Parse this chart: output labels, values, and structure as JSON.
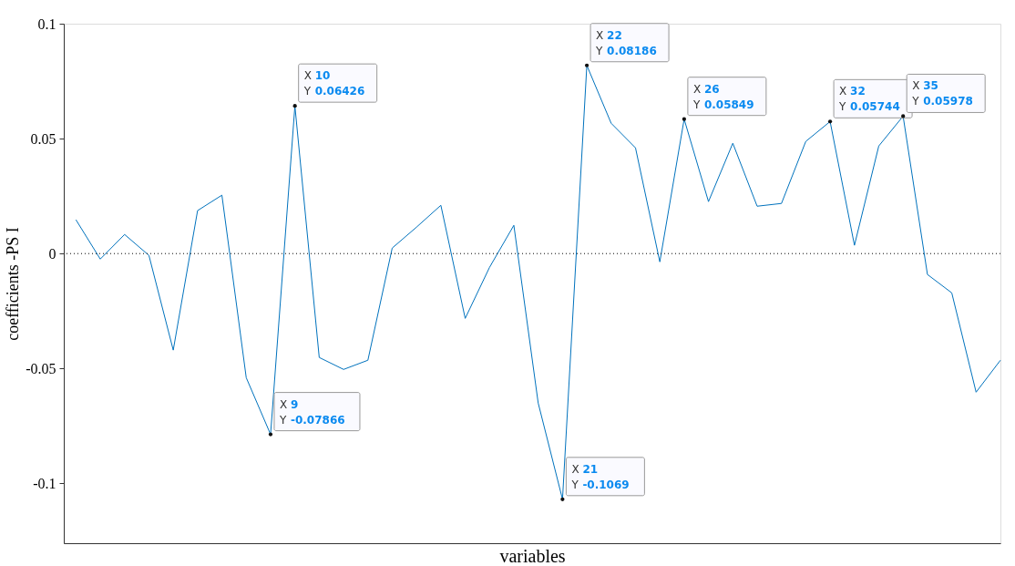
{
  "chart_data": {
    "type": "line",
    "xlabel": "variables",
    "ylabel": "coefficients -PS I",
    "tick_labels": "y",
    "marker": "none",
    "line_style": "solid",
    "grid": false,
    "categories": [
      null,
      null,
      null,
      null,
      null,
      null,
      null,
      null,
      null,
      null,
      null,
      null,
      null,
      null,
      null,
      null,
      null,
      null,
      null,
      null,
      null,
      null,
      null,
      null,
      null,
      null,
      null,
      null,
      null,
      null,
      null,
      null,
      null,
      null,
      null,
      null,
      null,
      null,
      null
    ],
    "ylim": [
      -0.126,
      0.1
    ],
    "yticks": [
      -0.1,
      -0.05,
      0,
      0.05,
      0.1
    ],
    "series": [
      {
        "color": "#0072bd",
        "values": [
          0.0147,
          -0.0024,
          0.0083,
          -0.0008,
          -0.042,
          0.0187,
          0.0254,
          -0.054,
          -0.07866,
          0.06426,
          -0.0452,
          -0.0504,
          -0.0464,
          0.0024,
          0.0115,
          0.021,
          -0.0282,
          -0.006,
          0.0123,
          -0.065,
          -0.1069,
          0.08186,
          0.0567,
          0.046,
          -0.0036,
          0.05849,
          0.0226,
          0.048,
          0.0206,
          0.0218,
          0.0488,
          0.05744,
          0.0036,
          0.0468,
          0.05978,
          -0.0091,
          -0.0171,
          -0.0603,
          -0.0464
        ]
      }
    ],
    "value_labels": [
      null,
      null,
      null,
      null,
      null,
      null,
      null,
      null,
      "X 9\nY -0.07866",
      "X 10\nY 0.06426",
      null,
      null,
      null,
      null,
      null,
      null,
      null,
      null,
      null,
      null,
      "X 21\nY -0.1069",
      "X 22\nY 0.08186",
      null,
      null,
      null,
      "X 26\nY 0.05849",
      null,
      null,
      null,
      null,
      null,
      "X 32\nY 0.05744",
      null,
      null,
      "X 35\nY 0.05978",
      null,
      null,
      null,
      null
    ],
    "ref_lines": [
      {
        "axis": "y",
        "value": 0,
        "color": "#000000",
        "line_style": "dotted"
      }
    ]
  }
}
